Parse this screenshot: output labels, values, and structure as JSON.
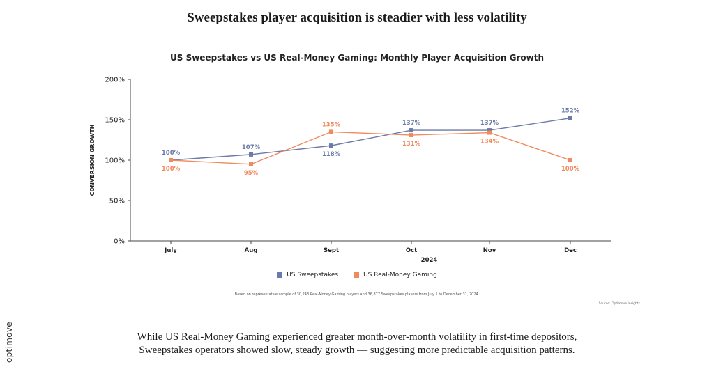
{
  "headline": "Sweepstakes player acquisition is steadier with less volatility",
  "brand": "optimove",
  "footnote": "Based on representative sample of 30,243 Real-Money Gaming players and 36,877 Sweepstakes players from July 1 to December 31, 2024.",
  "source": "Source: Optimove Insights",
  "caption_lines": [
    "While US Real-Money Gaming experienced greater month-over-month volatility in first-time depositors,",
    "Sweepstakes operators showed slow, steady growth — suggesting more predictable acquisition patterns."
  ],
  "chart_data": {
    "type": "line",
    "title": "US Sweepstakes vs US Real-Money Gaming: Monthly Player Acquisition Growth",
    "xlabel": "2024",
    "ylabel": "CONVERSION GROWTH",
    "categories": [
      "July",
      "Aug",
      "Sept",
      "Oct",
      "Nov",
      "Dec"
    ],
    "ylim": [
      0,
      200
    ],
    "yticks": [
      0,
      50,
      100,
      150,
      200
    ],
    "ytick_labels": [
      "0%",
      "50%",
      "100%",
      "150%",
      "200%"
    ],
    "grid": false,
    "legend_position": "bottom",
    "series": [
      {
        "name": "US Sweepstakes",
        "color": "#6b7aa8",
        "values": [
          100,
          107,
          118,
          137,
          137,
          152
        ],
        "labels": [
          "100%",
          "107%",
          "118%",
          "137%",
          "137%",
          "152%"
        ],
        "label_positions": [
          "above",
          "above",
          "below",
          "above",
          "above",
          "above"
        ]
      },
      {
        "name": "US Real-Money Gaming",
        "color": "#f08a5d",
        "values": [
          100,
          95,
          135,
          131,
          134,
          100
        ],
        "labels": [
          "100%",
          "95%",
          "135%",
          "131%",
          "134%",
          "100%"
        ],
        "label_positions": [
          "below",
          "below",
          "above",
          "below",
          "below",
          "below"
        ]
      }
    ]
  }
}
